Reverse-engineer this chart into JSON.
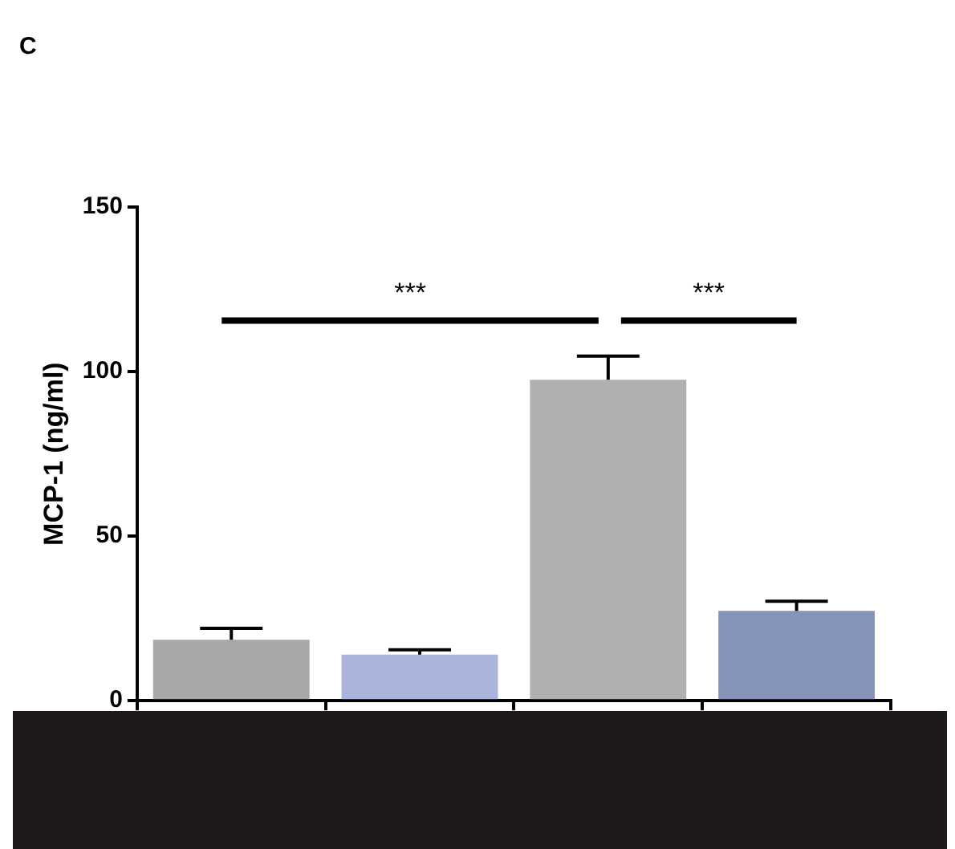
{
  "chart_data": {
    "type": "bar",
    "ylabel": "MCP-1 (ng/ml)",
    "categories": [
      null,
      null,
      null,
      null
    ],
    "values": [
      18.5,
      14,
      97.5,
      27.3
    ],
    "colors": [
      "#a8a8a8",
      "#a9b3dc",
      "#b0b0b0",
      "#8594b8"
    ],
    "errors": [
      [
        18.5,
        22
      ],
      [
        14,
        15.5
      ],
      [
        97.5,
        104.7
      ],
      [
        27.3,
        30.2
      ]
    ],
    "ylim": [
      0,
      150
    ],
    "yticks": [
      0,
      50,
      100,
      150
    ],
    "grid": false,
    "legend": false,
    "annotations": [
      "C",
      "***",
      "***"
    ]
  }
}
